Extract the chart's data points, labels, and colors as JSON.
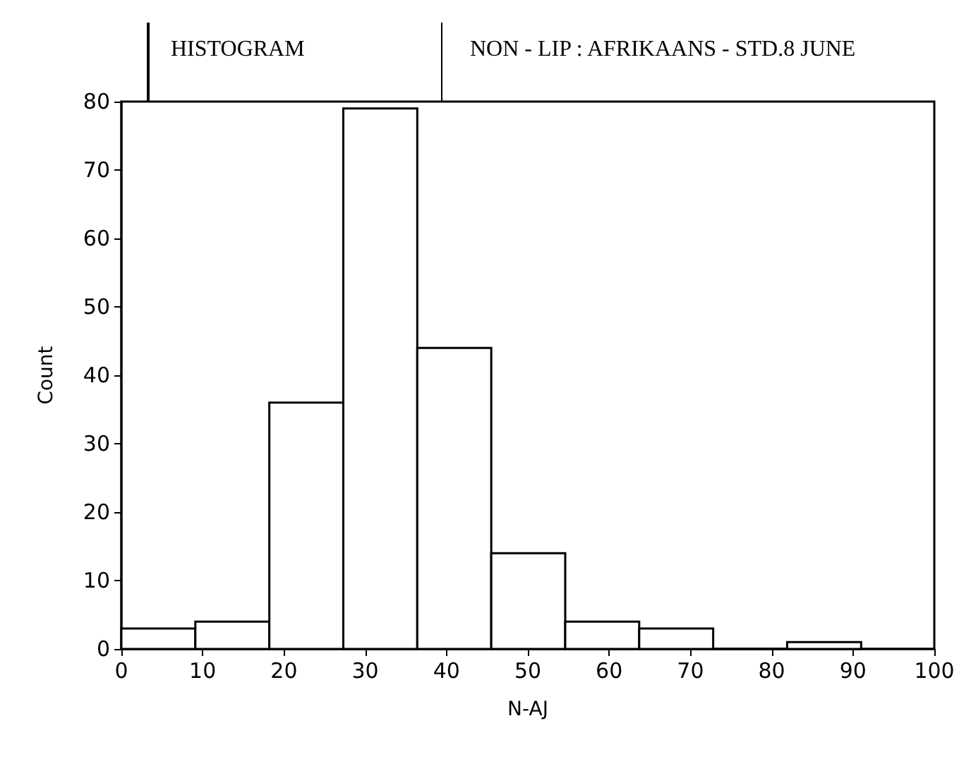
{
  "chart_data": {
    "type": "histogram",
    "title": "HISTOGRAM",
    "subtitle": "NON - LIP : AFRIKAANS - STD.8 JUNE",
    "xlabel": "N-AJ",
    "ylabel": "Count",
    "bins": [
      0,
      9.1,
      18.2,
      27.3,
      36.4,
      45.5,
      54.6,
      63.7,
      72.8,
      81.9,
      91
    ],
    "values": [
      3,
      4,
      36,
      79,
      44,
      14,
      4,
      3,
      0,
      1
    ],
    "color": "#ffffff",
    "xlim": [
      0,
      100
    ],
    "xticks": [
      0,
      10,
      20,
      30,
      40,
      50,
      60,
      70,
      80,
      90,
      100
    ],
    "ylim": [
      0,
      80
    ],
    "yticks": [
      0,
      10,
      20,
      30,
      40,
      50,
      60,
      70,
      80
    ],
    "grid": false
  }
}
